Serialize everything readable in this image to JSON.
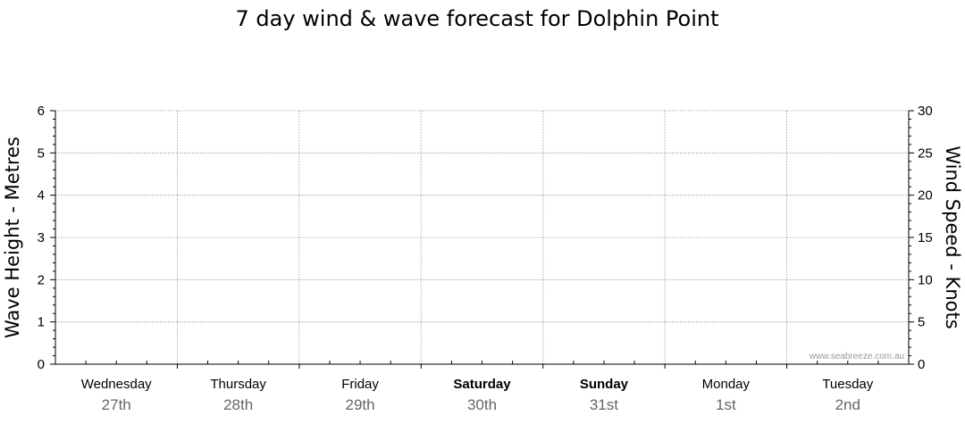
{
  "chart_data": {
    "type": "line",
    "title": "7 day wind & wave forecast for Dolphin Point",
    "y_left_label": "Wave Height - Metres",
    "y_right_label": "Wind Speed - Knots",
    "y_left_range": [
      0,
      6
    ],
    "y_left_ticks": [
      "0",
      "1",
      "2",
      "3",
      "4",
      "5",
      "6"
    ],
    "y_right_range": [
      0,
      30
    ],
    "y_right_ticks": [
      "0",
      "5",
      "10",
      "15",
      "20",
      "25",
      "30"
    ],
    "days": [
      {
        "day": "Wednesday",
        "date": "27th",
        "bold": false
      },
      {
        "day": "Thursday",
        "date": "28th",
        "bold": false
      },
      {
        "day": "Friday",
        "date": "29th",
        "bold": false
      },
      {
        "day": "Saturday",
        "date": "30th",
        "bold": true
      },
      {
        "day": "Sunday",
        "date": "31st",
        "bold": true
      },
      {
        "day": "Monday",
        "date": "1st",
        "bold": false
      },
      {
        "day": "Tuesday",
        "date": "2nd",
        "bold": false
      }
    ],
    "series": [],
    "grid": true,
    "watermark": "www.seabreeze.com.au"
  }
}
